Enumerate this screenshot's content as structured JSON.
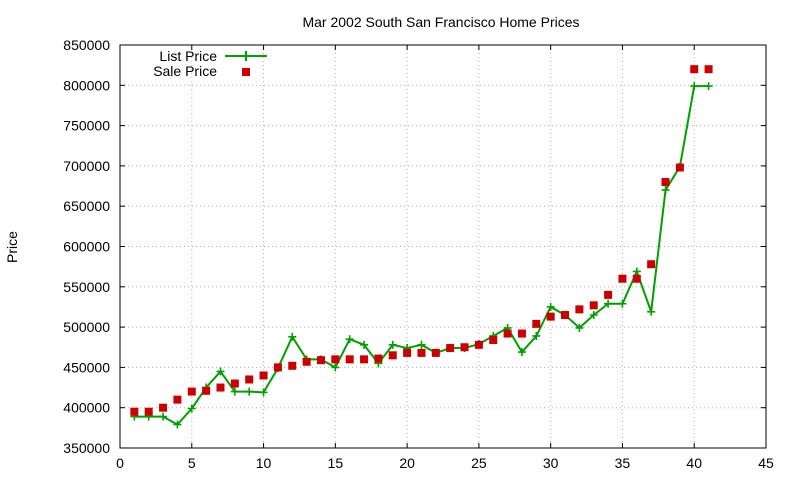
{
  "chart_data": {
    "type": "line",
    "title": "Mar 2002 South San Francisco Home Prices",
    "xlabel": "",
    "ylabel": "Price",
    "xlim": [
      0,
      45
    ],
    "ylim": [
      350000,
      850000
    ],
    "x_ticks": [
      0,
      5,
      10,
      15,
      20,
      25,
      30,
      35,
      40,
      45
    ],
    "y_ticks": [
      350000,
      400000,
      450000,
      500000,
      550000,
      600000,
      650000,
      700000,
      750000,
      800000,
      850000
    ],
    "grid": true,
    "legend_position": "top-left",
    "series": [
      {
        "name": "List Price",
        "style": "lines+points",
        "marker": "plus",
        "color": "#00a000",
        "x": [
          1,
          2,
          3,
          4,
          5,
          6,
          7,
          8,
          9,
          10,
          11,
          12,
          13,
          14,
          15,
          16,
          17,
          18,
          19,
          20,
          21,
          22,
          23,
          24,
          25,
          26,
          27,
          28,
          29,
          30,
          31,
          32,
          33,
          34,
          35,
          36,
          37,
          38,
          39,
          40,
          41
        ],
        "values": [
          389000,
          389000,
          389000,
          379000,
          399000,
          425000,
          445000,
          420000,
          420000,
          419000,
          449000,
          488000,
          460000,
          460000,
          450000,
          485000,
          478000,
          455000,
          478000,
          474000,
          478000,
          468000,
          474000,
          474000,
          479000,
          489000,
          499000,
          469000,
          489000,
          525000,
          515000,
          499000,
          515000,
          529000,
          529000,
          569000,
          519000,
          670000,
          699000,
          799000,
          799000
        ]
      },
      {
        "name": "Sale Price",
        "style": "points",
        "marker": "square",
        "color": "#cc0000",
        "x": [
          1,
          2,
          3,
          4,
          5,
          6,
          7,
          8,
          9,
          10,
          11,
          12,
          13,
          14,
          15,
          16,
          17,
          18,
          19,
          20,
          21,
          22,
          23,
          24,
          25,
          26,
          27,
          28,
          29,
          30,
          31,
          32,
          33,
          34,
          35,
          36,
          37,
          38,
          39,
          40,
          41
        ],
        "values": [
          395000,
          395000,
          400000,
          410000,
          420000,
          421000,
          425000,
          430000,
          435000,
          440000,
          450000,
          452000,
          457000,
          459000,
          460000,
          460000,
          460000,
          461000,
          465000,
          468000,
          468000,
          468000,
          474000,
          475000,
          478000,
          484000,
          492000,
          492000,
          504000,
          513000,
          515000,
          522000,
          527000,
          540000,
          560000,
          560000,
          578000,
          680000,
          698000,
          820000,
          820000
        ]
      }
    ]
  }
}
